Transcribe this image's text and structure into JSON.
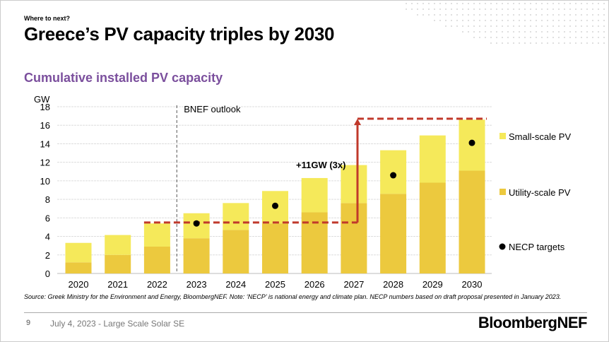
{
  "header": {
    "kicker": "Where to next?",
    "title": "Greece’s PV capacity triples by 2030",
    "subtitle": "Cumulative installed PV capacity"
  },
  "chart_data": {
    "type": "bar",
    "stacked": true,
    "ylabel": "GW",
    "ylim": [
      0,
      18
    ],
    "yticks": [
      0,
      2,
      4,
      6,
      8,
      10,
      12,
      14,
      16,
      18
    ],
    "grid": true,
    "legend_position": "right",
    "categories": [
      "2020",
      "2021",
      "2022",
      "2023",
      "2024",
      "2025",
      "2026",
      "2027",
      "2028",
      "2029",
      "2030"
    ],
    "series": [
      {
        "name": "Utility-scale PV",
        "color": "#ecc93e",
        "values": [
          1.2,
          2.0,
          2.9,
          3.8,
          4.7,
          5.4,
          6.6,
          7.6,
          8.6,
          9.8,
          11.1
        ]
      },
      {
        "name": "Small-scale PV",
        "color": "#f5e95a",
        "values": [
          2.1,
          2.15,
          2.5,
          2.7,
          2.9,
          3.5,
          3.7,
          4.1,
          4.7,
          5.1,
          5.5
        ]
      }
    ],
    "necp_targets": {
      "name": "NECP targets",
      "color": "#000000",
      "points": [
        {
          "x": "2023",
          "y": 5.4
        },
        {
          "x": "2025",
          "y": 7.3
        },
        {
          "x": "2028",
          "y": 10.6
        },
        {
          "x": "2030",
          "y": 14.1
        }
      ]
    },
    "annotations": {
      "outlook_label": "BNEF outlook",
      "outlook_start": "2023",
      "growth_label": "+11GW (3x)",
      "growth_from": 5.5,
      "growth_to": 16.7,
      "growth_color": "#c0392b"
    }
  },
  "source": "Source: Greek Ministry for the Environment and Energy, BloombergNEF. Note: ‘NECP’ is national energy and climate plan. NECP numbers based on draft proposal presented in January 2023.",
  "footer": {
    "page": "9",
    "text": "July 4, 2023 - Large Scale Solar SE",
    "logo": "BloombergNEF"
  }
}
